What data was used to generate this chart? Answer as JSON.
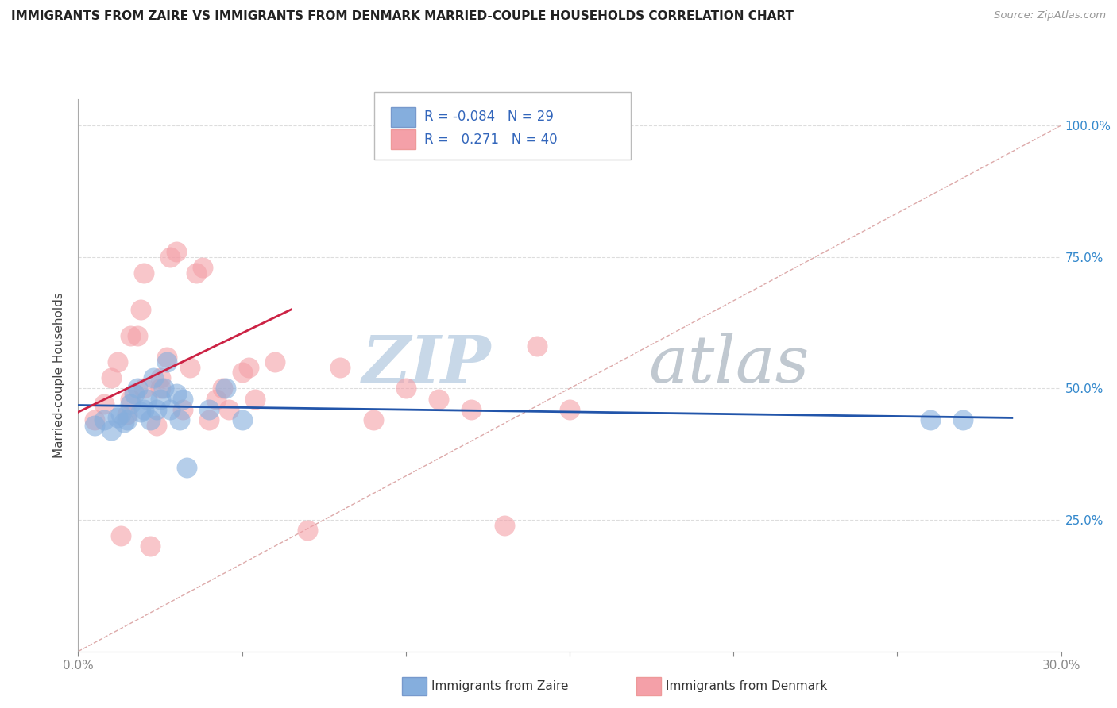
{
  "title": "IMMIGRANTS FROM ZAIRE VS IMMIGRANTS FROM DENMARK MARRIED-COUPLE HOUSEHOLDS CORRELATION CHART",
  "source": "Source: ZipAtlas.com",
  "ylabel": "Married-couple Households",
  "xmin": 0.0,
  "xmax": 0.3,
  "ymin": 0.0,
  "ymax": 1.05,
  "yticks": [
    0.25,
    0.5,
    0.75,
    1.0
  ],
  "ytick_labels": [
    "25.0%",
    "50.0%",
    "75.0%",
    "100.0%"
  ],
  "legend_r_blue": "-0.084",
  "legend_n_blue": "29",
  "legend_r_pink": "0.271",
  "legend_n_pink": "40",
  "blue_color": "#85AEDD",
  "pink_color": "#F4A0A8",
  "blue_line_color": "#2255AA",
  "pink_line_color": "#CC2244",
  "diag_line_color": "#DDAAAA",
  "watermark_zip": "ZIP",
  "watermark_atlas": "atlas",
  "watermark_color_zip": "#C8D8E8",
  "watermark_color_atlas": "#C0C8D0",
  "blue_scatter_x": [
    0.005,
    0.008,
    0.01,
    0.012,
    0.013,
    0.014,
    0.015,
    0.016,
    0.017,
    0.018,
    0.019,
    0.02,
    0.021,
    0.022,
    0.023,
    0.024,
    0.025,
    0.026,
    0.027,
    0.028,
    0.03,
    0.031,
    0.032,
    0.033,
    0.04,
    0.045,
    0.05,
    0.26,
    0.27
  ],
  "blue_scatter_y": [
    0.43,
    0.44,
    0.42,
    0.445,
    0.45,
    0.435,
    0.44,
    0.47,
    0.49,
    0.5,
    0.455,
    0.46,
    0.48,
    0.44,
    0.52,
    0.46,
    0.48,
    0.5,
    0.55,
    0.46,
    0.49,
    0.44,
    0.48,
    0.35,
    0.46,
    0.5,
    0.44,
    0.44,
    0.44
  ],
  "pink_scatter_x": [
    0.005,
    0.008,
    0.01,
    0.012,
    0.013,
    0.015,
    0.016,
    0.018,
    0.019,
    0.02,
    0.022,
    0.024,
    0.025,
    0.027,
    0.028,
    0.03,
    0.032,
    0.034,
    0.036,
    0.038,
    0.04,
    0.042,
    0.044,
    0.046,
    0.05,
    0.052,
    0.054,
    0.06,
    0.07,
    0.08,
    0.09,
    0.1,
    0.11,
    0.12,
    0.13,
    0.14,
    0.15,
    0.016,
    0.02,
    0.025
  ],
  "pink_scatter_y": [
    0.44,
    0.47,
    0.52,
    0.55,
    0.22,
    0.45,
    0.48,
    0.6,
    0.65,
    0.72,
    0.2,
    0.43,
    0.5,
    0.56,
    0.75,
    0.76,
    0.46,
    0.54,
    0.72,
    0.73,
    0.44,
    0.48,
    0.5,
    0.46,
    0.53,
    0.54,
    0.48,
    0.55,
    0.23,
    0.54,
    0.44,
    0.5,
    0.48,
    0.46,
    0.24,
    0.58,
    0.46,
    0.6,
    0.5,
    0.52
  ],
  "blue_line_x": [
    0.0,
    0.285
  ],
  "blue_line_y": [
    0.468,
    0.444
  ],
  "pink_line_x": [
    0.0,
    0.065
  ],
  "pink_line_y": [
    0.455,
    0.65
  ],
  "diag_line_x": [
    0.0,
    0.3
  ],
  "diag_line_y": [
    0.0,
    1.0
  ],
  "bg_color": "#FFFFFF",
  "grid_color": "#DDDDDD",
  "xtick_positions": [
    0.0,
    0.05,
    0.1,
    0.15,
    0.2,
    0.25,
    0.3
  ],
  "xtick_labels": [
    "0.0%",
    "",
    "",
    "",
    "",
    "",
    "30.0%"
  ]
}
